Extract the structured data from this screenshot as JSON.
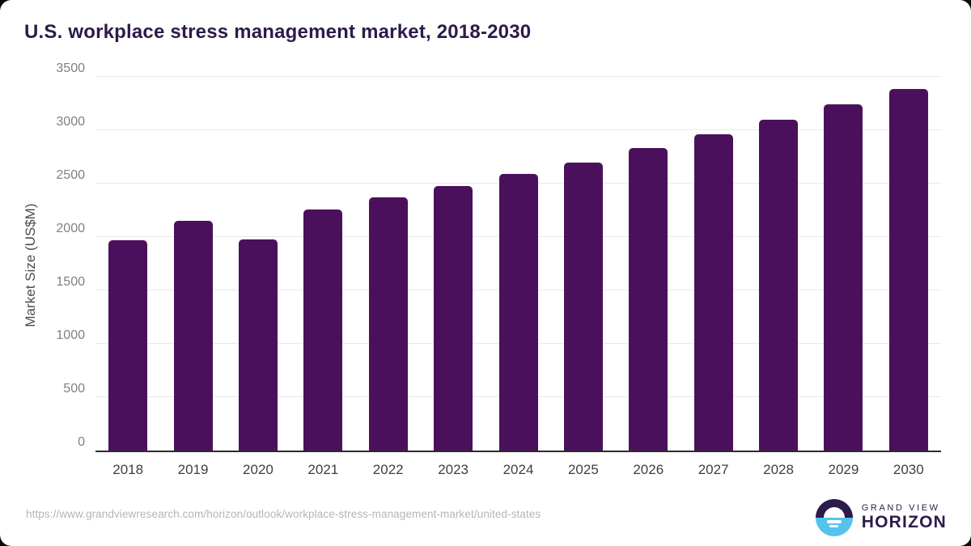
{
  "title": "U.S. workplace stress management market, 2018-2030",
  "chart_data": {
    "type": "bar",
    "title": "U.S. workplace stress management market, 2018-2030",
    "categories": [
      "2018",
      "2019",
      "2020",
      "2021",
      "2022",
      "2023",
      "2024",
      "2025",
      "2026",
      "2027",
      "2028",
      "2029",
      "2030"
    ],
    "values": [
      1970,
      2150,
      1975,
      2255,
      2375,
      2480,
      2590,
      2700,
      2830,
      2960,
      3095,
      3240,
      3390
    ],
    "xlabel": "",
    "ylabel": "Market Size (US$M)",
    "ylim": [
      0,
      3500
    ],
    "yticks": [
      0,
      500,
      1000,
      1500,
      2000,
      2500,
      3000,
      3500
    ],
    "grid": "horizontal",
    "legend": "none"
  },
  "footer": {
    "source_url": "https://www.grandviewresearch.com/horizon/outlook/workplace-stress-management-market/united-states"
  },
  "logo": {
    "line1": "GRAND VIEW",
    "line2": "HORIZON",
    "icon": "sunrise-horizon-icon"
  },
  "colors": {
    "bar": "#4b105c",
    "title": "#2d1b4a",
    "gridline": "#e8e8e8",
    "axis_line": "#2b2b2b",
    "y_tick_text": "#808080",
    "x_tick_text": "#3f3f3f",
    "url_text": "#b5b5b5",
    "logo_dark": "#2d1b4a",
    "logo_blue": "#55c3ee",
    "background": "#ffffff"
  }
}
